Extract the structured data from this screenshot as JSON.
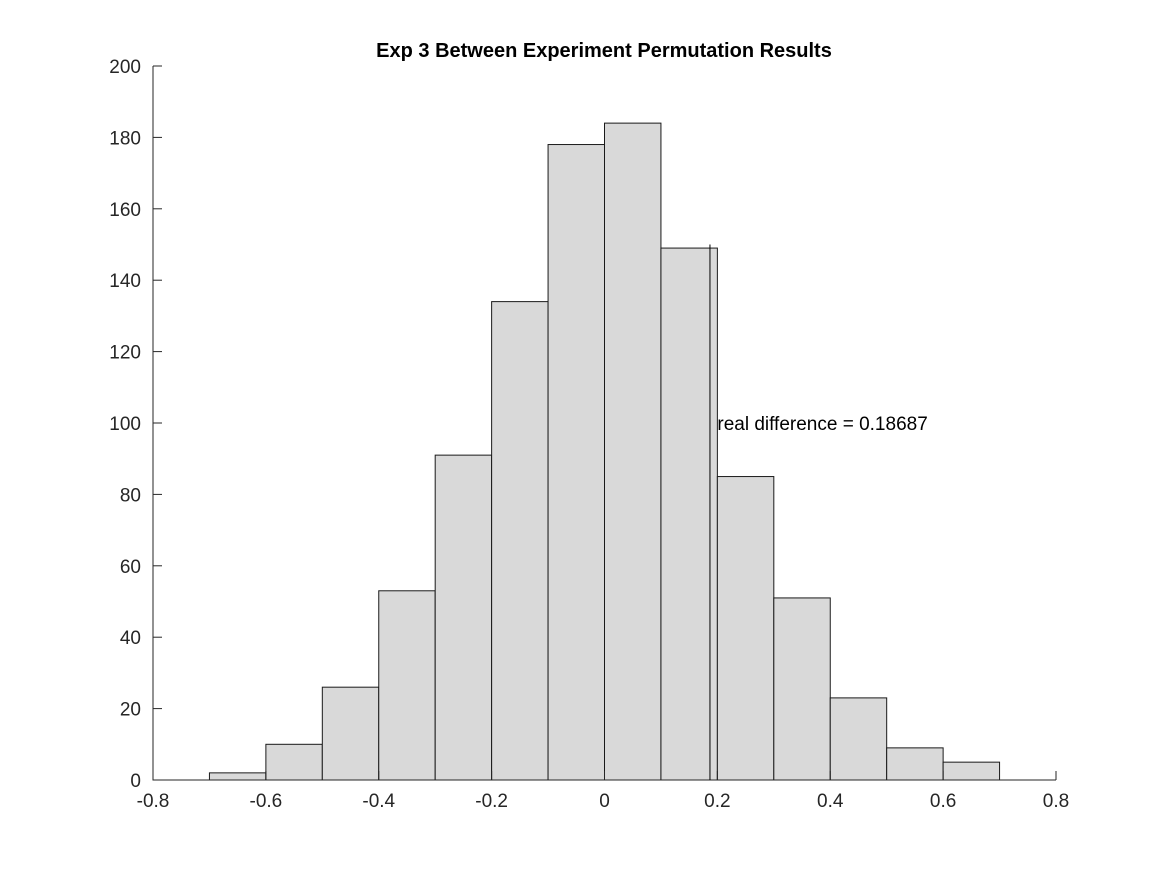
{
  "chart_data": {
    "type": "bar",
    "title": "Exp 3 Between Experiment Permutation Results",
    "xlabel": "",
    "ylabel": "",
    "xlim": [
      -0.8,
      0.8
    ],
    "ylim": [
      0,
      200
    ],
    "x_ticks": [
      "-0.8",
      "-0.6",
      "-0.4",
      "-0.2",
      "0",
      "0.2",
      "0.4",
      "0.6",
      "0.8"
    ],
    "x_tick_values": [
      -0.8,
      -0.6,
      -0.4,
      -0.2,
      0,
      0.2,
      0.4,
      0.6,
      0.8
    ],
    "y_ticks": [
      "0",
      "20",
      "40",
      "60",
      "80",
      "100",
      "120",
      "140",
      "160",
      "180",
      "200"
    ],
    "y_tick_values": [
      0,
      20,
      40,
      60,
      80,
      100,
      120,
      140,
      160,
      180,
      200
    ],
    "bin_edges": [
      -0.7,
      -0.6,
      -0.5,
      -0.4,
      -0.3,
      -0.2,
      -0.1,
      0,
      0.1,
      0.2,
      0.3,
      0.4,
      0.5,
      0.6,
      0.7
    ],
    "counts": [
      2,
      10,
      26,
      53,
      91,
      134,
      178,
      184,
      149,
      85,
      51,
      23,
      9,
      5
    ],
    "bar_color": "#d9d9d9",
    "edge_color": "#1a1a1a",
    "grid": false,
    "reference_line": {
      "x": 0.18687,
      "y_top": 150
    },
    "annotation": {
      "text": "real difference = 0.18687",
      "x": 0.2,
      "y": 100
    }
  }
}
